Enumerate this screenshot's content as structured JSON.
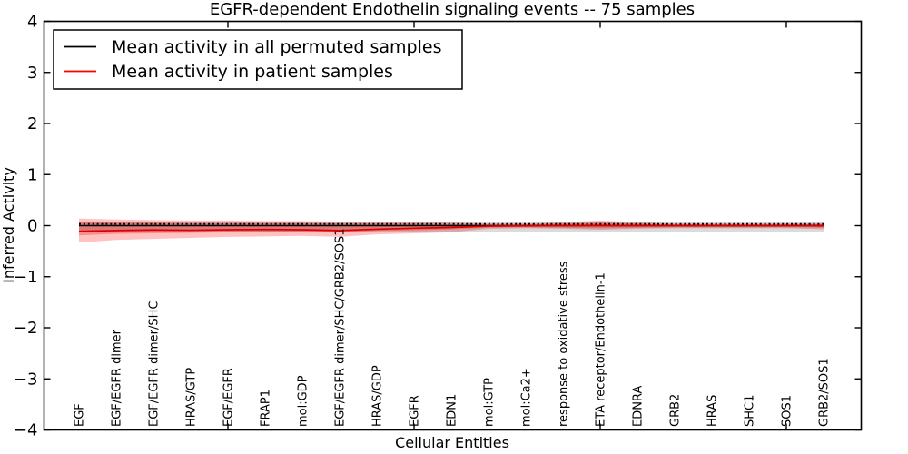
{
  "figure": {
    "background": "#ffffff",
    "border_color": "#000000"
  },
  "legend": {
    "items": [
      {
        "label": "Mean activity in all permuted samples",
        "color": "#000000"
      },
      {
        "label": "Mean activity in patient samples",
        "color": "#ff0000"
      }
    ]
  },
  "chart_data": {
    "type": "line",
    "title": "EGFR-dependent Endothelin signaling events -- 75 samples",
    "xlabel": "Cellular Entities",
    "ylabel": "Inferred Activity",
    "ylim": [
      -4,
      4
    ],
    "yticks": [
      4,
      3,
      2,
      1,
      0,
      -1,
      -2,
      -3,
      -4
    ],
    "x_major_tick_indices": [
      4,
      9,
      14,
      19
    ],
    "grid": false,
    "legend_position": "upper left",
    "categories": [
      "EGF",
      "EGF/EGFR dimer",
      "EGF/EGFR dimer/SHC",
      "HRAS/GTP",
      "EGF/EGFR",
      "FRAP1",
      "mol:GDP",
      "EGF/EGFR dimer/SHC/GRB2/SOS1",
      "HRAS/GDP",
      "EGFR",
      "EDN1",
      "mol:GTP",
      "mol:Ca2+",
      "response to oxidative stress",
      "ETA receptor/Endothelin-1",
      "EDNRA",
      "GRB2",
      "HRAS",
      "SHC1",
      "SOS1",
      "GRB2/SOS1"
    ],
    "series": [
      {
        "name": "Mean activity in all permuted samples",
        "color": "#000000",
        "line_style": "solid_with_dotted_overlay",
        "values": [
          0,
          0,
          0,
          0,
          0,
          0,
          0,
          0,
          0,
          0,
          0,
          0,
          0,
          0,
          0,
          0,
          0,
          0,
          0,
          0,
          0
        ],
        "band": {
          "fill": "rgba(0,0,0,0.14)",
          "upper": [
            0.07,
            0.07,
            0.07,
            0.07,
            0.07,
            0.07,
            0.07,
            0.07,
            0.07,
            0.07,
            0.07,
            0.07,
            0.07,
            0.07,
            0.07,
            0.07,
            0.07,
            0.07,
            0.07,
            0.07,
            0.07
          ],
          "lower": [
            -0.13,
            -0.13,
            -0.13,
            -0.13,
            -0.13,
            -0.13,
            -0.13,
            -0.13,
            -0.13,
            -0.13,
            -0.13,
            -0.13,
            -0.13,
            -0.13,
            -0.13,
            -0.13,
            -0.13,
            -0.13,
            -0.13,
            -0.13,
            -0.13
          ]
        }
      },
      {
        "name": "Mean activity in patient samples",
        "color": "#dd0000",
        "line_style": "solid",
        "values": [
          -0.11,
          -0.095,
          -0.085,
          -0.09,
          -0.08,
          -0.075,
          -0.08,
          -0.095,
          -0.07,
          -0.05,
          -0.035,
          -0.01,
          -0.005,
          0,
          0.005,
          0,
          0,
          0,
          0,
          0,
          -0.005
        ],
        "band_outer": {
          "fill": "rgba(255,0,0,0.24)",
          "upper": [
            0.14,
            0.12,
            0.11,
            0.1,
            0.1,
            0.09,
            0.09,
            0.08,
            0.07,
            0.07,
            0.06,
            0.04,
            0.04,
            0.07,
            0.1,
            0.07,
            0.04,
            0.04,
            0.04,
            0.04,
            0.05
          ],
          "lower": [
            -0.33,
            -0.28,
            -0.26,
            -0.24,
            -0.22,
            -0.21,
            -0.2,
            -0.22,
            -0.17,
            -0.15,
            -0.13,
            -0.06,
            -0.05,
            -0.06,
            -0.08,
            -0.06,
            -0.05,
            -0.05,
            -0.05,
            -0.05,
            -0.07
          ]
        },
        "band_inner": {
          "fill": "rgba(255,0,0,0.28)",
          "upper": [
            0.07,
            0.06,
            0.06,
            0.05,
            0.05,
            0.05,
            0.05,
            0.04,
            0.04,
            0.04,
            0.03,
            0.02,
            0.02,
            0.04,
            0.06,
            0.04,
            0.02,
            0.02,
            0.02,
            0.02,
            0.03
          ],
          "lower": [
            -0.19,
            -0.16,
            -0.15,
            -0.14,
            -0.13,
            -0.12,
            -0.12,
            -0.13,
            -0.1,
            -0.09,
            -0.07,
            -0.04,
            -0.03,
            -0.04,
            -0.05,
            -0.04,
            -0.03,
            -0.03,
            -0.03,
            -0.03,
            -0.04
          ]
        }
      }
    ]
  }
}
